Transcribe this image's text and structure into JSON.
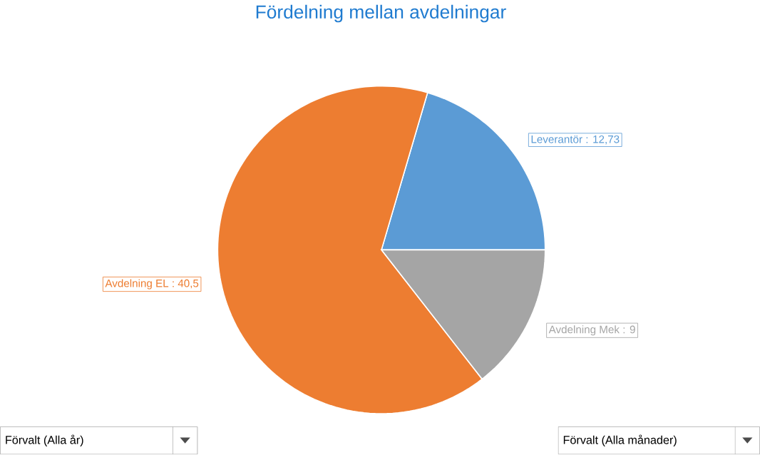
{
  "chart_data": {
    "type": "pie",
    "title": "Fördelning mellan avdelningar",
    "categories": [
      "Leverantör",
      "Avdelning EL",
      "Avdelning Mek"
    ],
    "values": [
      12.73,
      40.5,
      9
    ],
    "value_labels": [
      ": 12,73",
      ": 40,5",
      ": 9"
    ],
    "colors": [
      "#5b9bd5",
      "#ed7d31",
      "#a5a5a5"
    ],
    "annotations": [
      "Förvalt (Alla år)",
      "Förvalt (Alla månader)"
    ]
  }
}
